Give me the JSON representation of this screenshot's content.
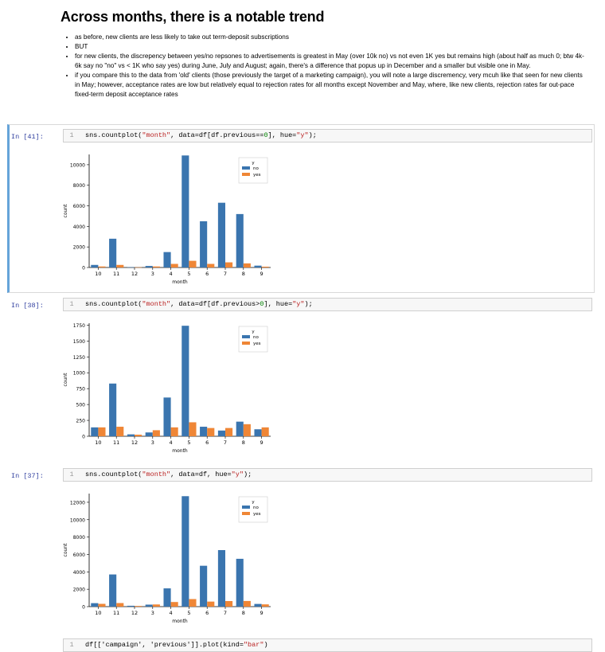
{
  "markdown": {
    "heading": "Across months, there is a notable trend",
    "bullets": [
      "as before, new clients are less likely to take out term-deposit subscriptions",
      "BUT",
      "for new clients, the discrepency between yes/no repsones to advertisements is greatest in May (over 10k no) vs not even 1K yes but remains high (about half as much 0; btw 4k-6k say no \"no\" vs < 1K who say yes) during June, July and August; again, there's a difference that popus up in December and a smaller but visible one in May.",
      "if you compare this to the data from 'old' clients (those previously the target of a marketing campaign), you will note a large discremency, very mcuh like that seen for new clients in May; however, acceptance rates are low but relatively equal to rejection rates for all months except November and May, where, like new clients, rejection rates far out-pace fixed-term deposit acceptance rates"
    ]
  },
  "cells": [
    {
      "prompt": "In [41]:",
      "line": "1",
      "code_parts": [
        "sns.countplot(",
        "\"month\"",
        ", data=df[df.previous==",
        "0",
        "], hue=",
        "\"y\"",
        ");"
      ]
    },
    {
      "prompt": "In [38]:",
      "line": "1",
      "code_parts": [
        "sns.countplot(",
        "\"month\"",
        ", data=df[df.previous>",
        "0",
        "], hue=",
        "\"y\"",
        ");"
      ]
    },
    {
      "prompt": "In [37]:",
      "line": "1",
      "code_parts": [
        "sns.countplot(",
        "\"month\"",
        ", data=df, hue=",
        "\"y\"",
        ");"
      ]
    },
    {
      "prompt": "",
      "line": "1",
      "code_parts": [
        "df[['campaign', 'previous']].plot(kind=",
        "\"bar\"",
        ")"
      ]
    }
  ],
  "colors": {
    "no": "#3a75af",
    "yes": "#ef8636",
    "prompt": "#303f9f",
    "selected_cell": "#66a4d9"
  },
  "chart_data": [
    {
      "type": "bar",
      "xlabel": "month",
      "ylabel": "count",
      "legend_title": "y",
      "legend_position": "top-right",
      "categories": [
        "10",
        "11",
        "12",
        "3",
        "4",
        "5",
        "6",
        "7",
        "8",
        "9"
      ],
      "ylim": [
        0,
        11000
      ],
      "yticks": [
        0,
        2000,
        4000,
        6000,
        8000,
        10000
      ],
      "series": [
        {
          "name": "no",
          "values": [
            250,
            2800,
            30,
            150,
            1500,
            10900,
            4500,
            6300,
            5200,
            180
          ]
        },
        {
          "name": "yes",
          "values": [
            100,
            250,
            20,
            100,
            350,
            650,
            350,
            500,
            400,
            80
          ]
        }
      ]
    },
    {
      "type": "bar",
      "xlabel": "month",
      "ylabel": "count",
      "legend_title": "y",
      "legend_position": "top-right",
      "categories": [
        "10",
        "11",
        "12",
        "3",
        "4",
        "5",
        "6",
        "7",
        "8",
        "9"
      ],
      "ylim": [
        0,
        1780
      ],
      "yticks": [
        0,
        250,
        500,
        750,
        1000,
        1250,
        1500,
        1750
      ],
      "series": [
        {
          "name": "no",
          "values": [
            140,
            830,
            30,
            60,
            610,
            1740,
            150,
            90,
            230,
            110
          ]
        },
        {
          "name": "yes",
          "values": [
            140,
            150,
            25,
            95,
            140,
            220,
            130,
            130,
            190,
            140
          ]
        }
      ]
    },
    {
      "type": "bar",
      "xlabel": "month",
      "ylabel": "count",
      "legend_title": "y",
      "legend_position": "top-right",
      "categories": [
        "10",
        "11",
        "12",
        "3",
        "4",
        "5",
        "6",
        "7",
        "8",
        "9"
      ],
      "ylim": [
        0,
        13000
      ],
      "yticks": [
        0,
        2000,
        4000,
        6000,
        8000,
        10000,
        12000
      ],
      "series": [
        {
          "name": "no",
          "values": [
            400,
            3700,
            100,
            230,
            2100,
            12700,
            4700,
            6500,
            5500,
            310
          ]
        },
        {
          "name": "yes",
          "values": [
            320,
            410,
            80,
            250,
            530,
            870,
            580,
            640,
            650,
            260
          ]
        }
      ]
    }
  ]
}
